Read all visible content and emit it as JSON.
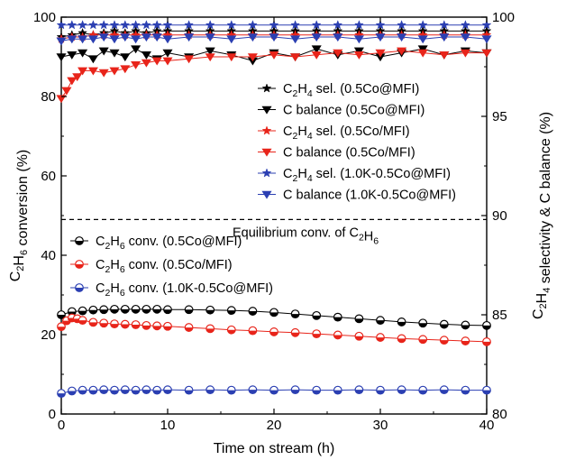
{
  "chart_data": {
    "type": "scatter",
    "xlabel": "Time on stream (h)",
    "ylabel_left": "C2H6 conversion (%)",
    "ylabel_right": "C2H4 selectivity & C balance (%)",
    "xlim": [
      0,
      40
    ],
    "ylim_left": [
      0,
      100
    ],
    "ylim_right": [
      80,
      100
    ],
    "x_ticks": [
      0,
      10,
      20,
      30,
      40
    ],
    "y_left_ticks": [
      0,
      20,
      40,
      60,
      80,
      100
    ],
    "y_right_ticks": [
      80,
      85,
      90,
      95,
      100
    ],
    "legend_placement": "right",
    "equilibrium": {
      "value": 49,
      "axis": "left",
      "label": "Equilibrium conv. of C2H6"
    },
    "series": [
      {
        "name": "C2H4 sel. (0.5Co@MFI)",
        "axis": "right",
        "marker": "star",
        "color": "#000000",
        "x": [
          0,
          1,
          2,
          3,
          4,
          5,
          6,
          7,
          8,
          9,
          10,
          12,
          14,
          16,
          18,
          20,
          22,
          24,
          26,
          28,
          30,
          32,
          34,
          36,
          38,
          40
        ],
        "values": [
          99.0,
          99.1,
          99.2,
          99.1,
          99.2,
          99.3,
          99.2,
          99.3,
          99.2,
          99.3,
          99.3,
          99.3,
          99.3,
          99.3,
          99.3,
          99.3,
          99.3,
          99.3,
          99.3,
          99.3,
          99.3,
          99.3,
          99.3,
          99.3,
          99.3,
          99.3
        ]
      },
      {
        "name": "C balance (0.5Co@MFI)",
        "axis": "right",
        "marker": "triangle-down",
        "color": "#000000",
        "x": [
          0,
          1,
          2,
          3,
          4,
          5,
          6,
          7,
          8,
          9,
          10,
          12,
          14,
          16,
          18,
          20,
          22,
          24,
          26,
          28,
          30,
          32,
          34,
          36,
          38,
          40
        ],
        "values": [
          98.0,
          98.1,
          98.2,
          97.9,
          98.3,
          98.2,
          98.0,
          98.4,
          98.1,
          97.9,
          98.2,
          98.0,
          98.3,
          98.1,
          97.8,
          98.2,
          98.0,
          98.4,
          98.1,
          98.3,
          98.0,
          98.2,
          98.4,
          98.1,
          98.3,
          98.2
        ]
      },
      {
        "name": "C2H4 sel. (0.5Co/MFI)",
        "axis": "right",
        "marker": "star",
        "color": "#e8241a",
        "x": [
          0,
          1,
          2,
          3,
          4,
          5,
          6,
          7,
          8,
          9,
          10,
          12,
          14,
          16,
          18,
          20,
          22,
          24,
          26,
          28,
          30,
          32,
          34,
          36,
          38,
          40
        ],
        "values": [
          98.9,
          99.0,
          99.0,
          99.1,
          99.1,
          99.1,
          99.1,
          99.1,
          99.1,
          99.1,
          99.1,
          99.1,
          99.1,
          99.1,
          99.1,
          99.1,
          99.1,
          99.1,
          99.1,
          99.1,
          99.1,
          99.1,
          99.1,
          99.1,
          99.1,
          99.1
        ]
      },
      {
        "name": "C balance (0.5Co/MFI)",
        "axis": "right",
        "marker": "triangle-down",
        "color": "#e8241a",
        "x": [
          0,
          0.5,
          1,
          1.5,
          2,
          3,
          4,
          5,
          6,
          7,
          8,
          9,
          10,
          12,
          14,
          16,
          18,
          20,
          22,
          24,
          26,
          28,
          30,
          32,
          34,
          36,
          38,
          40
        ],
        "values": [
          95.9,
          96.3,
          96.8,
          97.0,
          97.3,
          97.3,
          97.2,
          97.3,
          97.4,
          97.6,
          97.7,
          97.8,
          97.8,
          97.9,
          98.0,
          98.0,
          98.0,
          98.1,
          98.0,
          98.1,
          98.2,
          98.1,
          98.2,
          98.3,
          98.2,
          98.1,
          98.2,
          98.2
        ]
      },
      {
        "name": "C2H4 sel. (1.0K-0.5Co@MFI)",
        "axis": "right",
        "marker": "star",
        "color": "#2b3fb2",
        "x": [
          0,
          1,
          2,
          3,
          4,
          5,
          6,
          7,
          8,
          9,
          10,
          12,
          14,
          16,
          18,
          20,
          22,
          24,
          26,
          28,
          30,
          32,
          34,
          36,
          38,
          40
        ],
        "values": [
          99.6,
          99.6,
          99.6,
          99.6,
          99.6,
          99.6,
          99.6,
          99.6,
          99.6,
          99.6,
          99.6,
          99.6,
          99.6,
          99.6,
          99.6,
          99.6,
          99.6,
          99.6,
          99.6,
          99.6,
          99.6,
          99.6,
          99.6,
          99.6,
          99.6,
          99.6
        ]
      },
      {
        "name": "C balance (1.0K-0.5Co@MFI)",
        "axis": "right",
        "marker": "triangle-down",
        "color": "#2b3fb2",
        "x": [
          0,
          1,
          2,
          3,
          4,
          5,
          6,
          7,
          8,
          9,
          10,
          12,
          14,
          16,
          18,
          20,
          22,
          24,
          26,
          28,
          30,
          32,
          34,
          36,
          38,
          40
        ],
        "values": [
          98.8,
          98.9,
          98.9,
          98.9,
          99.0,
          98.9,
          99.0,
          98.9,
          99.0,
          99.0,
          98.9,
          99.0,
          99.0,
          98.9,
          99.0,
          99.0,
          98.9,
          99.0,
          99.0,
          98.9,
          99.0,
          99.0,
          98.9,
          99.0,
          99.0,
          98.9
        ]
      },
      {
        "name": "C2H6 conv. (0.5Co@MFI)",
        "axis": "left",
        "marker": "circle-half",
        "color": "#000000",
        "x": [
          0,
          1,
          2,
          3,
          4,
          5,
          6,
          7,
          8,
          9,
          10,
          12,
          14,
          16,
          18,
          20,
          22,
          24,
          26,
          28,
          30,
          32,
          34,
          36,
          38,
          40
        ],
        "values": [
          25.0,
          25.8,
          26.0,
          26.2,
          26.3,
          26.4,
          26.4,
          26.4,
          26.4,
          26.4,
          26.3,
          26.3,
          26.2,
          26.1,
          25.9,
          25.6,
          25.2,
          24.8,
          24.4,
          24.0,
          23.6,
          23.2,
          22.9,
          22.6,
          22.4,
          22.3
        ]
      },
      {
        "name": "C2H6 conv. (0.5Co/MFI)",
        "axis": "left",
        "marker": "circle-half",
        "color": "#e8241a",
        "x": [
          0,
          0.5,
          1,
          1.5,
          2,
          3,
          4,
          5,
          6,
          7,
          8,
          9,
          10,
          12,
          14,
          16,
          18,
          20,
          22,
          24,
          26,
          28,
          30,
          32,
          34,
          36,
          38,
          40
        ],
        "values": [
          22.0,
          23.5,
          24.2,
          24.0,
          23.6,
          23.1,
          22.9,
          22.7,
          22.6,
          22.5,
          22.3,
          22.2,
          22.1,
          21.8,
          21.5,
          21.2,
          21.0,
          20.7,
          20.5,
          20.2,
          19.9,
          19.6,
          19.3,
          19.0,
          18.8,
          18.6,
          18.4,
          18.2
        ]
      },
      {
        "name": "C2H6 conv. (1.0K-0.5Co@MFI)",
        "axis": "left",
        "marker": "circle-half",
        "color": "#2b3fb2",
        "x": [
          0,
          1,
          2,
          3,
          4,
          5,
          6,
          7,
          8,
          9,
          10,
          12,
          14,
          16,
          18,
          20,
          22,
          24,
          26,
          28,
          30,
          32,
          34,
          36,
          38,
          40
        ],
        "values": [
          5.2,
          5.8,
          6.0,
          6.0,
          6.1,
          6.0,
          6.1,
          6.0,
          6.1,
          6.0,
          6.1,
          6.0,
          6.1,
          6.0,
          6.1,
          6.0,
          6.1,
          6.0,
          6.0,
          6.1,
          6.0,
          6.1,
          6.0,
          6.1,
          6.0,
          6.0
        ]
      }
    ],
    "legend_upper": [
      {
        "prefix": "C",
        "sub": "2",
        "mid": "H",
        "sub2": "4",
        "rest": " sel. (0.5Co@MFI)"
      },
      {
        "prefix": "C balance (0.5Co@MFI)",
        "sub": "",
        "mid": "",
        "sub2": "",
        "rest": ""
      },
      {
        "prefix": "C",
        "sub": "2",
        "mid": "H",
        "sub2": "4",
        "rest": " sel. (0.5Co/MFI)"
      },
      {
        "prefix": "C balance (0.5Co/MFI)",
        "sub": "",
        "mid": "",
        "sub2": "",
        "rest": ""
      },
      {
        "prefix": "C",
        "sub": "2",
        "mid": "H",
        "sub2": "4",
        "rest": " sel. (1.0K-0.5Co@MFI)"
      },
      {
        "prefix": "C balance (1.0K-0.5Co@MFI)",
        "sub": "",
        "mid": "",
        "sub2": "",
        "rest": ""
      }
    ],
    "legend_lower": [
      {
        "prefix": "C",
        "sub": "2",
        "mid": "H",
        "sub2": "6",
        "rest": " conv. (0.5Co@MFI)"
      },
      {
        "prefix": "C",
        "sub": "2",
        "mid": "H",
        "sub2": "6",
        "rest": " conv. (0.5Co/MFI)"
      },
      {
        "prefix": "C",
        "sub": "2",
        "mid": "H",
        "sub2": "6",
        "rest": " conv. (1.0K-0.5Co@MFI)"
      }
    ]
  }
}
